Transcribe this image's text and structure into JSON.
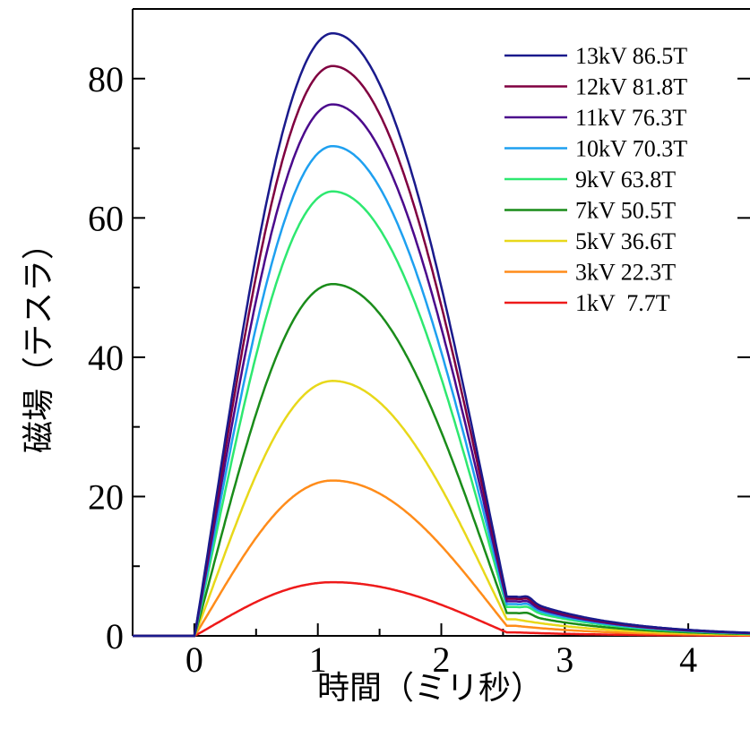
{
  "chart_data": {
    "type": "line",
    "xlabel": "時間（ミリ秒）",
    "ylabel": "磁場（テスラ）",
    "xlim": [
      -0.5,
      4.5
    ],
    "ylim": [
      0,
      90
    ],
    "xticks": [
      0,
      1,
      2,
      3,
      4
    ],
    "yticks": [
      0,
      20,
      40,
      60,
      80
    ],
    "grid": false,
    "legend_position": "top-right",
    "series": [
      {
        "name": "13kV 86.5T",
        "color": "#1a1a8c",
        "peak": 86.5
      },
      {
        "name": "12kV 81.8T",
        "color": "#800040",
        "peak": 81.8
      },
      {
        "name": "11kV 76.3T",
        "color": "#4b0a8c",
        "peak": 76.3
      },
      {
        "name": "10kV 70.3T",
        "color": "#1ea0f0",
        "peak": 70.3
      },
      {
        "name": "9kV 63.8T",
        "color": "#2ee870",
        "peak": 63.8
      },
      {
        "name": "7kV 50.5T",
        "color": "#1a8c1a",
        "peak": 50.5
      },
      {
        "name": "5kV 36.6T",
        "color": "#e8d81a",
        "peak": 36.6
      },
      {
        "name": "3kV 22.3T",
        "color": "#ff8c1a",
        "peak": 22.3
      },
      {
        "name": "1kV  7.7T",
        "color": "#ee1a1a",
        "peak": 7.7
      }
    ],
    "curve_shape": {
      "start_time": 0,
      "peak_time": 1.12,
      "fall_end_time": 2.6,
      "tail_end_time": 4.5
    }
  }
}
